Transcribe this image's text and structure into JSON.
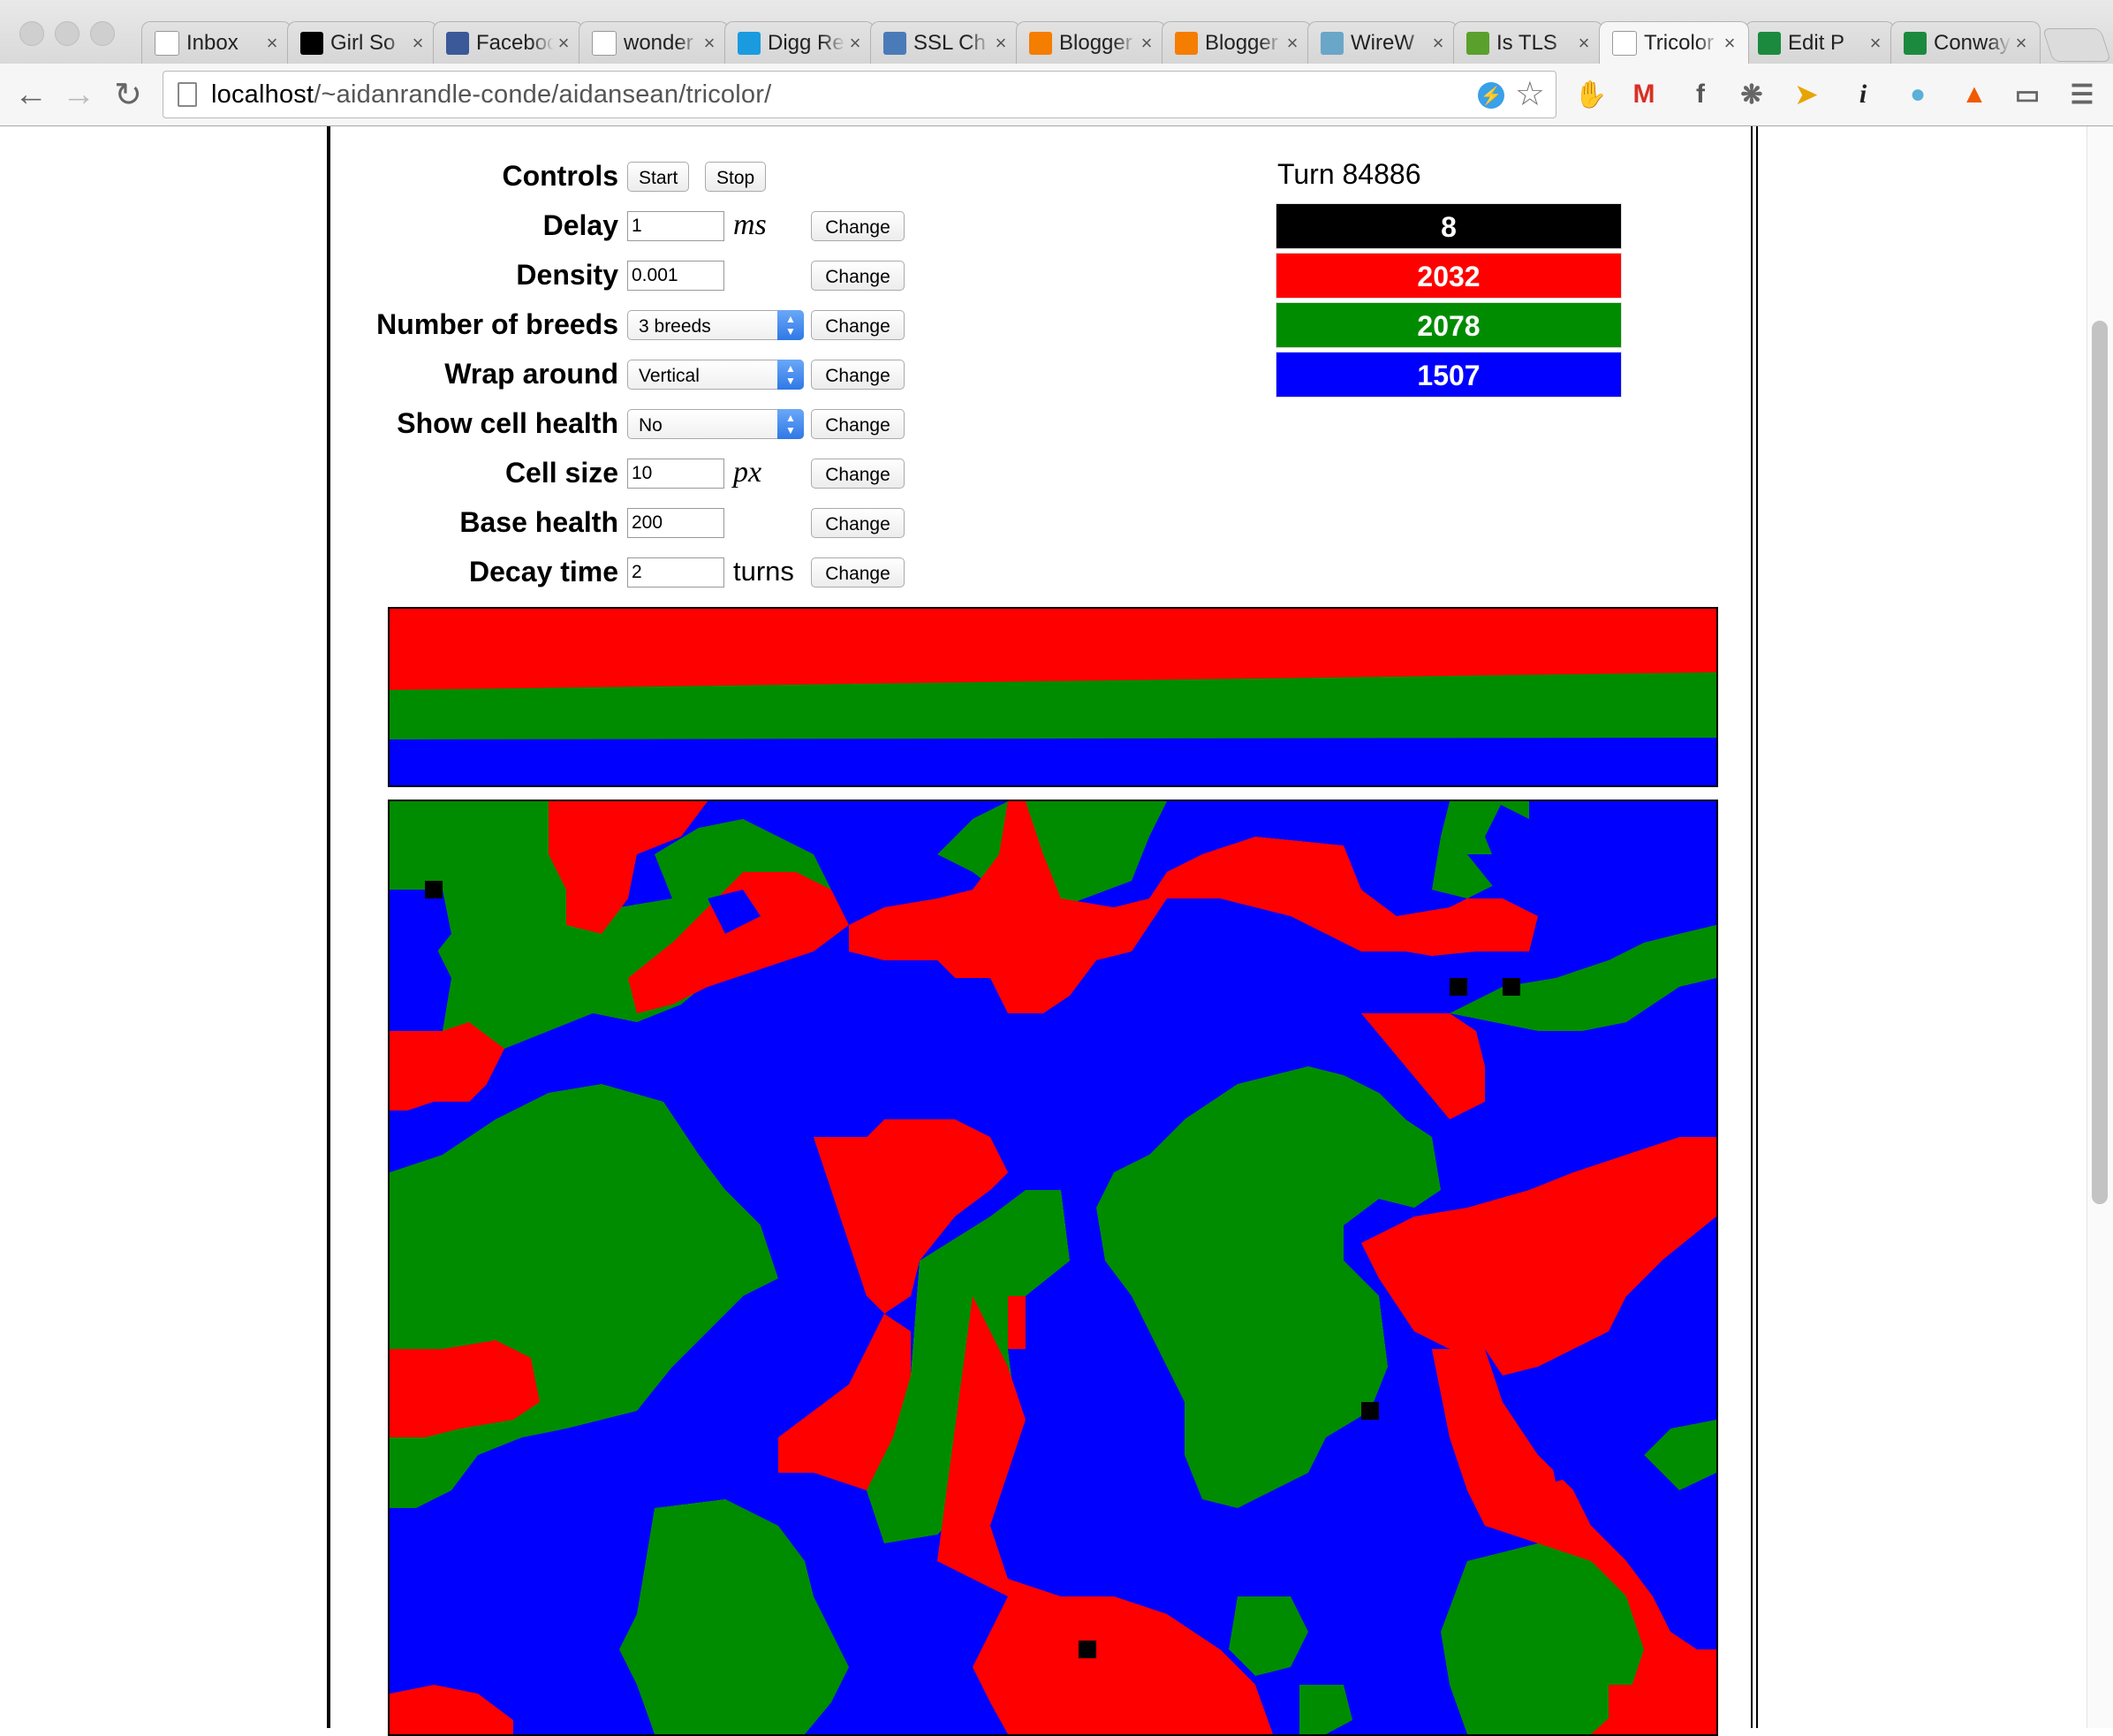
{
  "browser": {
    "tabs": [
      {
        "title": "Inbox",
        "icon": "gmail-icon",
        "color": "#ffffff"
      },
      {
        "title": "Girl So",
        "icon": "digg-icon",
        "color": "#000000"
      },
      {
        "title": "Facebook",
        "icon": "facebook-icon",
        "color": "#3b5998"
      },
      {
        "title": "wonder",
        "icon": "page-icon",
        "color": "#ffffff"
      },
      {
        "title": "Digg Re",
        "icon": "digg-icon",
        "color": "#1a9be0"
      },
      {
        "title": "SSL Ch",
        "icon": "ssl-icon",
        "color": "#4a7bb8"
      },
      {
        "title": "Blogger",
        "icon": "blogger-icon",
        "color": "#f57d00"
      },
      {
        "title": "Blogger",
        "icon": "blogger-icon",
        "color": "#f57d00"
      },
      {
        "title": "WireW",
        "icon": "globe-icon",
        "color": "#6aa6c8"
      },
      {
        "title": "Is TLS",
        "icon": "lock-icon",
        "color": "#5aa02c"
      },
      {
        "title": "Tricolor",
        "icon": "page-icon",
        "color": "#ffffff"
      },
      {
        "title": "Edit P",
        "icon": "a-icon",
        "color": "#1b8a3e"
      },
      {
        "title": "Conway",
        "icon": "a-icon",
        "color": "#1b8a3e"
      }
    ],
    "active_tab": 10,
    "url_host": "localhost",
    "url_path": "/~aidanrandle-conde/aidansean/tricolor/"
  },
  "controls": {
    "label": "Controls",
    "start": "Start",
    "stop": "Stop",
    "change": "Change",
    "rows": {
      "delay": {
        "label": "Delay",
        "value": "1",
        "unit": "ms"
      },
      "density": {
        "label": "Density",
        "value": "0.001"
      },
      "breeds": {
        "label": "Number of breeds",
        "value": "3 breeds"
      },
      "wrap": {
        "label": "Wrap around",
        "value": "Vertical"
      },
      "health": {
        "label": "Show cell health",
        "value": "No"
      },
      "cellsize": {
        "label": "Cell size",
        "value": "10",
        "unit": "px"
      },
      "basehealth": {
        "label": "Base health",
        "value": "200"
      },
      "decay": {
        "label": "Decay time",
        "value": "2",
        "unit": "turns"
      }
    }
  },
  "stats": {
    "turn": "Turn 84886",
    "counts": [
      {
        "value": "8",
        "color": "#000000"
      },
      {
        "value": "2032",
        "color": "#ff0000"
      },
      {
        "value": "2078",
        "color": "#008c00"
      },
      {
        "value": "1507",
        "color": "#0000ff"
      }
    ]
  },
  "colors": {
    "red": "#ff0000",
    "green": "#008c00",
    "blue": "#0000ff",
    "black": "#000000"
  }
}
